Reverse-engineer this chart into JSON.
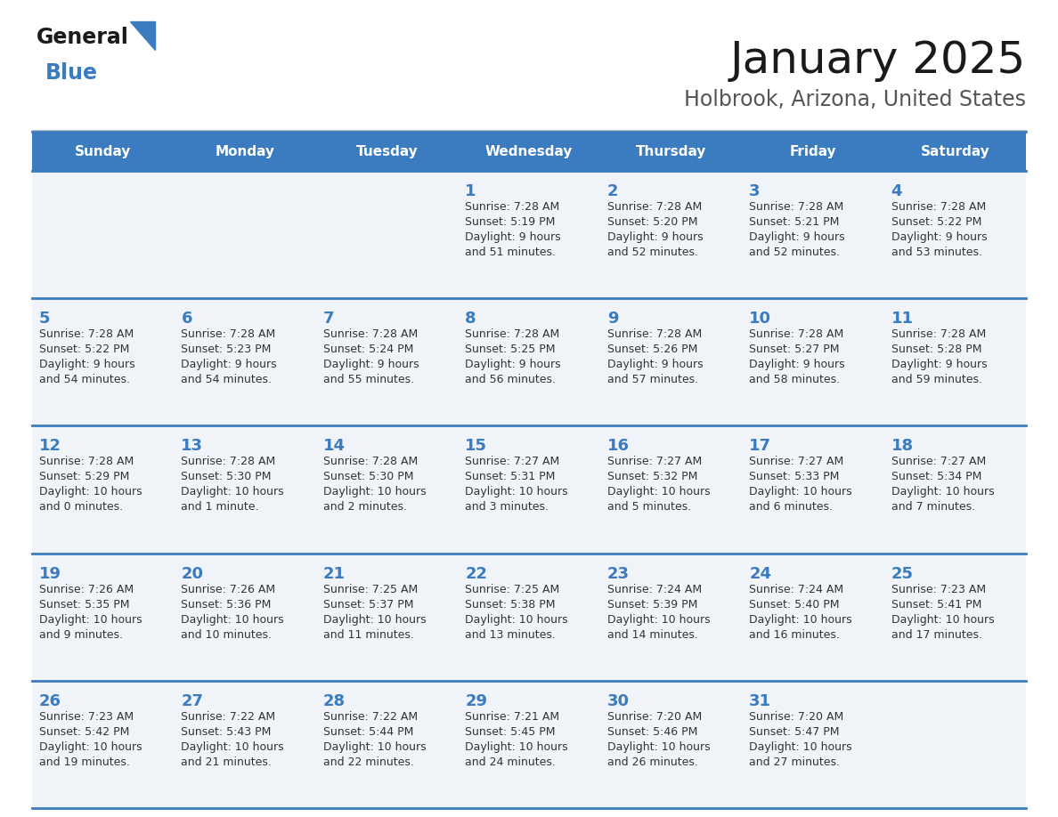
{
  "title": "January 2025",
  "subtitle": "Holbrook, Arizona, United States",
  "header_bg_color": "#3b7bbf",
  "header_text_color": "#ffffff",
  "cell_bg_color": "#f0f4f8",
  "cell_text_color": "#333333",
  "day_number_color": "#3b7bbf",
  "border_color": "#3b7bbf",
  "days_of_week": [
    "Sunday",
    "Monday",
    "Tuesday",
    "Wednesday",
    "Thursday",
    "Friday",
    "Saturday"
  ],
  "weeks": [
    [
      {
        "date": "",
        "sunrise": "",
        "sunset": "",
        "daylight_line1": "",
        "daylight_line2": ""
      },
      {
        "date": "",
        "sunrise": "",
        "sunset": "",
        "daylight_line1": "",
        "daylight_line2": ""
      },
      {
        "date": "",
        "sunrise": "",
        "sunset": "",
        "daylight_line1": "",
        "daylight_line2": ""
      },
      {
        "date": "1",
        "sunrise": "7:28 AM",
        "sunset": "5:19 PM",
        "daylight_line1": "9 hours",
        "daylight_line2": "and 51 minutes."
      },
      {
        "date": "2",
        "sunrise": "7:28 AM",
        "sunset": "5:20 PM",
        "daylight_line1": "9 hours",
        "daylight_line2": "and 52 minutes."
      },
      {
        "date": "3",
        "sunrise": "7:28 AM",
        "sunset": "5:21 PM",
        "daylight_line1": "9 hours",
        "daylight_line2": "and 52 minutes."
      },
      {
        "date": "4",
        "sunrise": "7:28 AM",
        "sunset": "5:22 PM",
        "daylight_line1": "9 hours",
        "daylight_line2": "and 53 minutes."
      }
    ],
    [
      {
        "date": "5",
        "sunrise": "7:28 AM",
        "sunset": "5:22 PM",
        "daylight_line1": "9 hours",
        "daylight_line2": "and 54 minutes."
      },
      {
        "date": "6",
        "sunrise": "7:28 AM",
        "sunset": "5:23 PM",
        "daylight_line1": "9 hours",
        "daylight_line2": "and 54 minutes."
      },
      {
        "date": "7",
        "sunrise": "7:28 AM",
        "sunset": "5:24 PM",
        "daylight_line1": "9 hours",
        "daylight_line2": "and 55 minutes."
      },
      {
        "date": "8",
        "sunrise": "7:28 AM",
        "sunset": "5:25 PM",
        "daylight_line1": "9 hours",
        "daylight_line2": "and 56 minutes."
      },
      {
        "date": "9",
        "sunrise": "7:28 AM",
        "sunset": "5:26 PM",
        "daylight_line1": "9 hours",
        "daylight_line2": "and 57 minutes."
      },
      {
        "date": "10",
        "sunrise": "7:28 AM",
        "sunset": "5:27 PM",
        "daylight_line1": "9 hours",
        "daylight_line2": "and 58 minutes."
      },
      {
        "date": "11",
        "sunrise": "7:28 AM",
        "sunset": "5:28 PM",
        "daylight_line1": "9 hours",
        "daylight_line2": "and 59 minutes."
      }
    ],
    [
      {
        "date": "12",
        "sunrise": "7:28 AM",
        "sunset": "5:29 PM",
        "daylight_line1": "10 hours",
        "daylight_line2": "and 0 minutes."
      },
      {
        "date": "13",
        "sunrise": "7:28 AM",
        "sunset": "5:30 PM",
        "daylight_line1": "10 hours",
        "daylight_line2": "and 1 minute."
      },
      {
        "date": "14",
        "sunrise": "7:28 AM",
        "sunset": "5:30 PM",
        "daylight_line1": "10 hours",
        "daylight_line2": "and 2 minutes."
      },
      {
        "date": "15",
        "sunrise": "7:27 AM",
        "sunset": "5:31 PM",
        "daylight_line1": "10 hours",
        "daylight_line2": "and 3 minutes."
      },
      {
        "date": "16",
        "sunrise": "7:27 AM",
        "sunset": "5:32 PM",
        "daylight_line1": "10 hours",
        "daylight_line2": "and 5 minutes."
      },
      {
        "date": "17",
        "sunrise": "7:27 AM",
        "sunset": "5:33 PM",
        "daylight_line1": "10 hours",
        "daylight_line2": "and 6 minutes."
      },
      {
        "date": "18",
        "sunrise": "7:27 AM",
        "sunset": "5:34 PM",
        "daylight_line1": "10 hours",
        "daylight_line2": "and 7 minutes."
      }
    ],
    [
      {
        "date": "19",
        "sunrise": "7:26 AM",
        "sunset": "5:35 PM",
        "daylight_line1": "10 hours",
        "daylight_line2": "and 9 minutes."
      },
      {
        "date": "20",
        "sunrise": "7:26 AM",
        "sunset": "5:36 PM",
        "daylight_line1": "10 hours",
        "daylight_line2": "and 10 minutes."
      },
      {
        "date": "21",
        "sunrise": "7:25 AM",
        "sunset": "5:37 PM",
        "daylight_line1": "10 hours",
        "daylight_line2": "and 11 minutes."
      },
      {
        "date": "22",
        "sunrise": "7:25 AM",
        "sunset": "5:38 PM",
        "daylight_line1": "10 hours",
        "daylight_line2": "and 13 minutes."
      },
      {
        "date": "23",
        "sunrise": "7:24 AM",
        "sunset": "5:39 PM",
        "daylight_line1": "10 hours",
        "daylight_line2": "and 14 minutes."
      },
      {
        "date": "24",
        "sunrise": "7:24 AM",
        "sunset": "5:40 PM",
        "daylight_line1": "10 hours",
        "daylight_line2": "and 16 minutes."
      },
      {
        "date": "25",
        "sunrise": "7:23 AM",
        "sunset": "5:41 PM",
        "daylight_line1": "10 hours",
        "daylight_line2": "and 17 minutes."
      }
    ],
    [
      {
        "date": "26",
        "sunrise": "7:23 AM",
        "sunset": "5:42 PM",
        "daylight_line1": "10 hours",
        "daylight_line2": "and 19 minutes."
      },
      {
        "date": "27",
        "sunrise": "7:22 AM",
        "sunset": "5:43 PM",
        "daylight_line1": "10 hours",
        "daylight_line2": "and 21 minutes."
      },
      {
        "date": "28",
        "sunrise": "7:22 AM",
        "sunset": "5:44 PM",
        "daylight_line1": "10 hours",
        "daylight_line2": "and 22 minutes."
      },
      {
        "date": "29",
        "sunrise": "7:21 AM",
        "sunset": "5:45 PM",
        "daylight_line1": "10 hours",
        "daylight_line2": "and 24 minutes."
      },
      {
        "date": "30",
        "sunrise": "7:20 AM",
        "sunset": "5:46 PM",
        "daylight_line1": "10 hours",
        "daylight_line2": "and 26 minutes."
      },
      {
        "date": "31",
        "sunrise": "7:20 AM",
        "sunset": "5:47 PM",
        "daylight_line1": "10 hours",
        "daylight_line2": "and 27 minutes."
      },
      {
        "date": "",
        "sunrise": "",
        "sunset": "",
        "daylight_line1": "",
        "daylight_line2": ""
      }
    ]
  ],
  "logo_color_general": "#1a1a1a",
  "logo_color_blue": "#3b7bbf",
  "title_color": "#1a1a1a",
  "subtitle_color": "#555555",
  "title_fontsize": 36,
  "subtitle_fontsize": 17,
  "header_fontsize": 11,
  "date_fontsize": 13,
  "cell_text_fontsize": 9
}
